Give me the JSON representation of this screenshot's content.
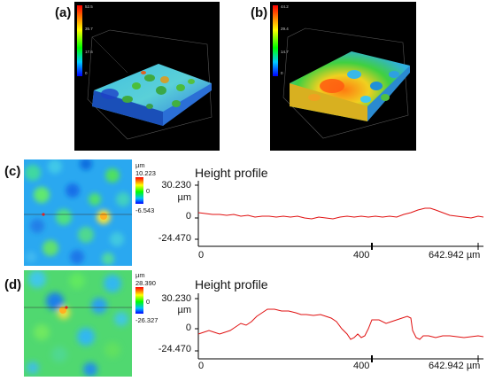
{
  "panels": {
    "a": {
      "label": "(a)",
      "scale_ticks": [
        "52.5",
        "35.7",
        "17.6",
        "0"
      ]
    },
    "b": {
      "label": "(b)",
      "scale_ticks": [
        "44.2",
        "29.4",
        "14.7",
        "0"
      ]
    },
    "c": {
      "label": "(c)",
      "colorbar": {
        "unit": "µm",
        "max": "10.223",
        "mid": "0",
        "min": "-6.543"
      },
      "profile": {
        "title": "Height profile",
        "y_top": "30.230",
        "y_unit": "µm",
        "y_mid": "0",
        "y_bottom": "-24.470",
        "x_ticks": [
          "0",
          "400",
          "642.942 µm"
        ],
        "line_color": "#e01010"
      }
    },
    "d": {
      "label": "(d)",
      "colorbar": {
        "unit": "µm",
        "max": "28.390",
        "mid": "0",
        "min": "-26.327"
      },
      "profile": {
        "title": "Height profile",
        "y_top": "30.230",
        "y_unit": "µm",
        "y_mid": "0",
        "y_bottom": "-24.470",
        "x_ticks": [
          "0",
          "400",
          "642.942 µm"
        ],
        "line_color": "#e01010"
      }
    }
  }
}
